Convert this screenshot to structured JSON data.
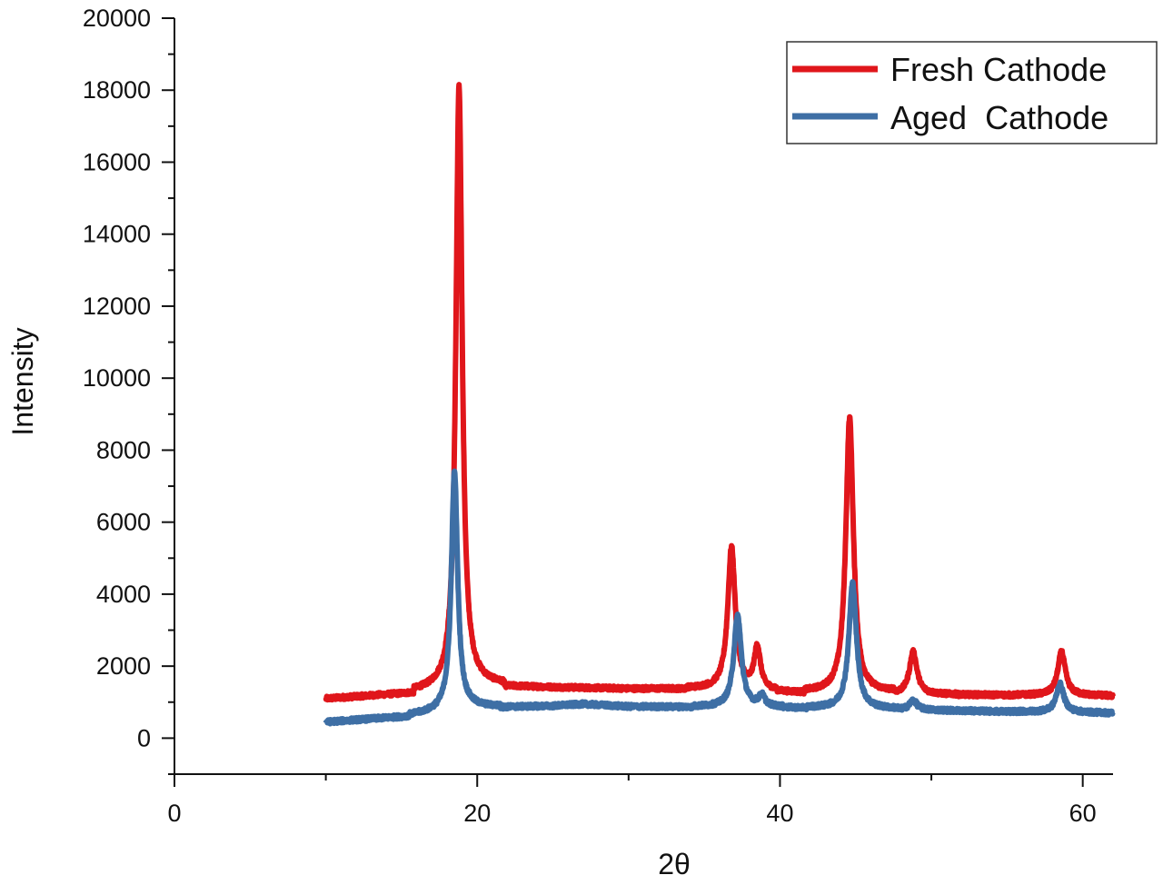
{
  "chart_data": {
    "type": "line",
    "title": "",
    "xlabel": "2θ",
    "ylabel": "Intensity",
    "xlim": [
      0,
      62
    ],
    "ylim": [
      -1000,
      20000
    ],
    "x_ticks": [
      0,
      20,
      40,
      60
    ],
    "y_ticks": [
      0,
      2000,
      4000,
      6000,
      8000,
      10000,
      12000,
      14000,
      16000,
      18000,
      20000
    ],
    "x_tick_labels": [
      "0",
      "20",
      "40",
      "60"
    ],
    "y_tick_labels": [
      "0",
      "2000",
      "4000",
      "6000",
      "8000",
      "10000",
      "12000",
      "14000",
      "16000",
      "18000",
      "20000"
    ],
    "grid": false,
    "legend_position": "top-right",
    "series": [
      {
        "name": "Fresh Cathode",
        "color": "#e0161b",
        "baseline": [
          [
            10,
            1100
          ],
          [
            15,
            1250
          ],
          [
            17.5,
            1350
          ],
          [
            19.5,
            1500
          ],
          [
            25,
            1420
          ],
          [
            30,
            1380
          ],
          [
            35,
            1380
          ],
          [
            40,
            1300
          ],
          [
            45,
            1250
          ],
          [
            50,
            1220
          ],
          [
            55,
            1200
          ],
          [
            62,
            1180
          ]
        ],
        "peaks": [
          {
            "x": 18.8,
            "height": 18100,
            "width": 0.25
          },
          {
            "x": 36.8,
            "height": 5300,
            "width": 0.3
          },
          {
            "x": 38.5,
            "height": 2500,
            "width": 0.25
          },
          {
            "x": 44.6,
            "height": 8900,
            "width": 0.3
          },
          {
            "x": 48.8,
            "height": 2400,
            "width": 0.3
          },
          {
            "x": 58.6,
            "height": 2400,
            "width": 0.3
          }
        ]
      },
      {
        "name": "Aged  Cathode",
        "color": "#3e6fa5",
        "baseline": [
          [
            10,
            450
          ],
          [
            15,
            600
          ],
          [
            18,
            750
          ],
          [
            19.5,
            850
          ],
          [
            25,
            900
          ],
          [
            27,
            950
          ],
          [
            30,
            880
          ],
          [
            35,
            870
          ],
          [
            40,
            860
          ],
          [
            45,
            820
          ],
          [
            50,
            780
          ],
          [
            55,
            740
          ],
          [
            62,
            700
          ]
        ],
        "peaks": [
          {
            "x": 18.5,
            "height": 7400,
            "width": 0.25
          },
          {
            "x": 37.2,
            "height": 3400,
            "width": 0.3
          },
          {
            "x": 38.8,
            "height": 1150,
            "width": 0.25
          },
          {
            "x": 44.8,
            "height": 4300,
            "width": 0.3
          },
          {
            "x": 48.8,
            "height": 1050,
            "width": 0.3
          },
          {
            "x": 58.5,
            "height": 1500,
            "width": 0.3
          }
        ]
      }
    ]
  }
}
